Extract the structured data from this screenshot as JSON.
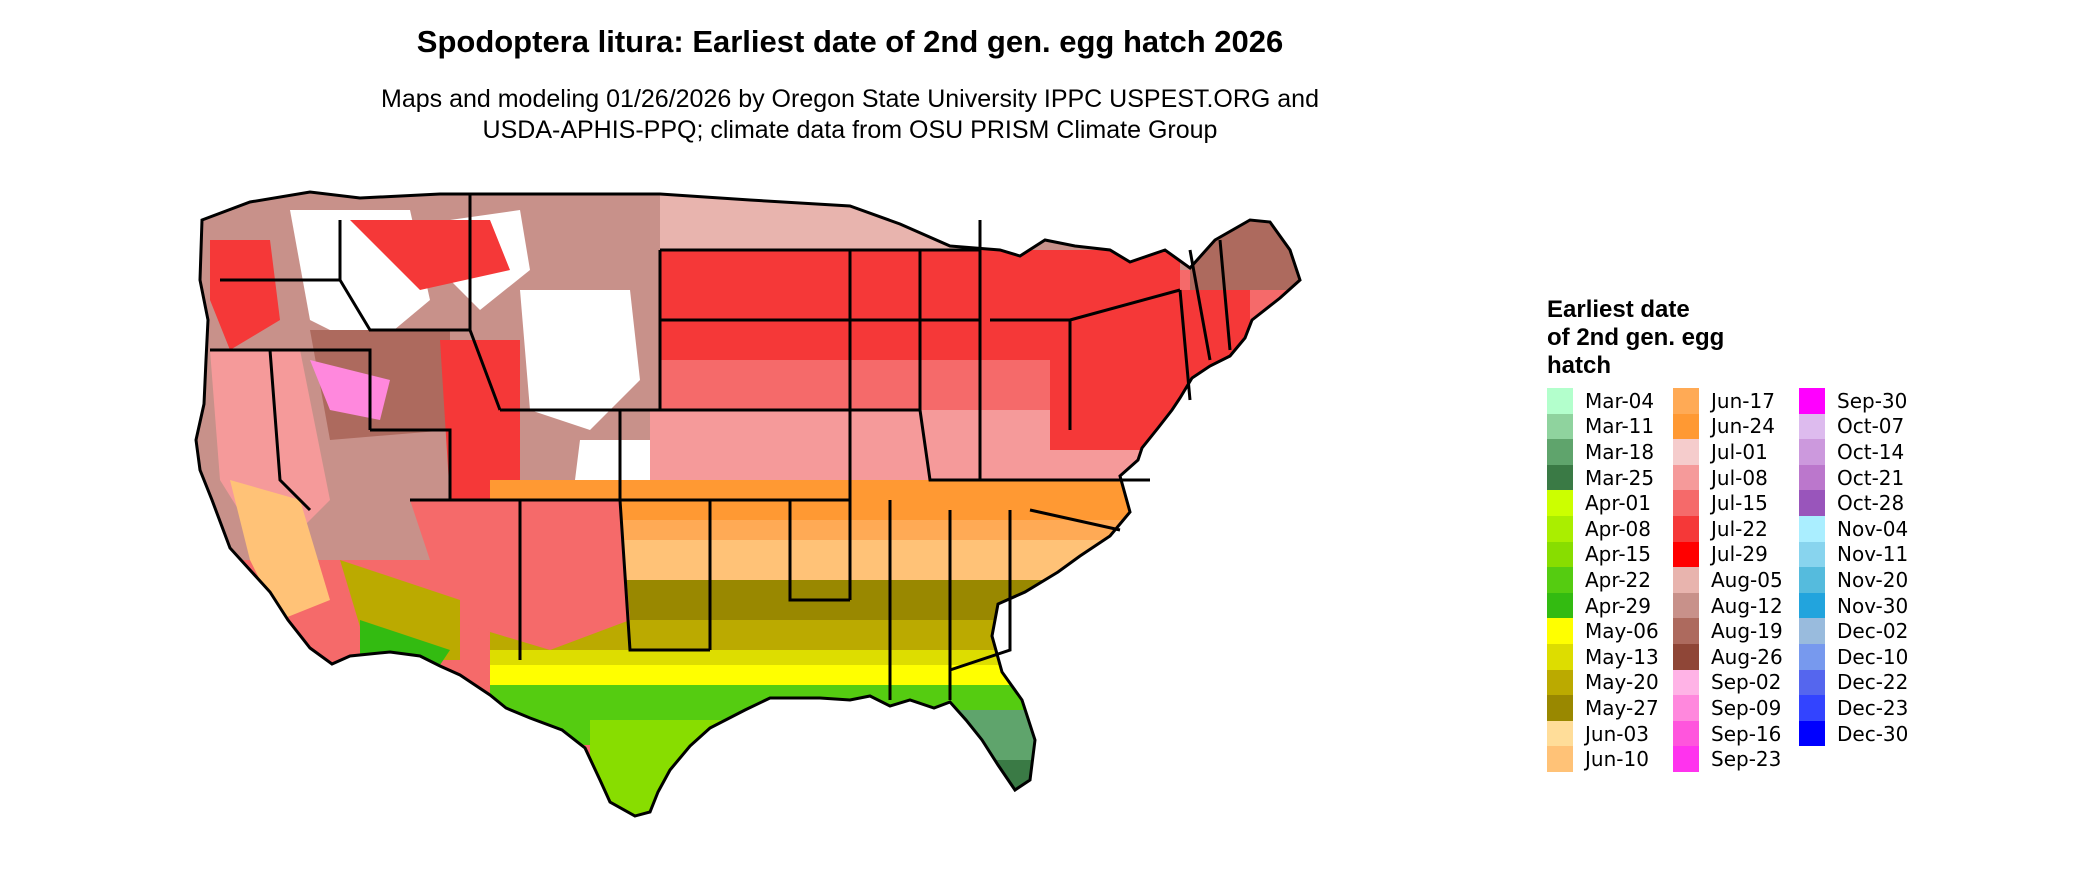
{
  "title": "Spodoptera litura: Earliest date of 2nd gen. egg hatch 2026",
  "subtitle_line1": "Maps and modeling 01/26/2026 by Oregon State University IPPC USPEST.ORG and",
  "subtitle_line2": "USDA-APHIS-PPQ; climate data from OSU PRISM Climate Group",
  "legend": {
    "title_line1": "Earliest date",
    "title_line2": "of 2nd gen. egg",
    "title_line3": "hatch",
    "columns": [
      [
        {
          "label": "Mar-04",
          "color": "#b3ffcc"
        },
        {
          "label": "Mar-11",
          "color": "#8fd39e"
        },
        {
          "label": "Mar-18",
          "color": "#5fa46c"
        },
        {
          "label": "Mar-25",
          "color": "#3a7a45"
        },
        {
          "label": "Apr-01",
          "color": "#ccff00"
        },
        {
          "label": "Apr-08",
          "color": "#aaee00"
        },
        {
          "label": "Apr-15",
          "color": "#88dd00"
        },
        {
          "label": "Apr-22",
          "color": "#55cc11"
        },
        {
          "label": "Apr-29",
          "color": "#33bb11"
        },
        {
          "label": "May-06",
          "color": "#ffff00"
        },
        {
          "label": "May-13",
          "color": "#dddd00"
        },
        {
          "label": "May-20",
          "color": "#bbaa00"
        },
        {
          "label": "May-27",
          "color": "#998800"
        },
        {
          "label": "Jun-03",
          "color": "#ffdd99"
        },
        {
          "label": "Jun-10",
          "color": "#ffc277"
        }
      ],
      [
        {
          "label": "Jun-17",
          "color": "#ffaa55"
        },
        {
          "label": "Jun-24",
          "color": "#ff9933"
        },
        {
          "label": "Jul-01",
          "color": "#f5cccc"
        },
        {
          "label": "Jul-08",
          "color": "#f59a9a"
        },
        {
          "label": "Jul-15",
          "color": "#f56a6a"
        },
        {
          "label": "Jul-22",
          "color": "#f53838"
        },
        {
          "label": "Jul-29",
          "color": "#ff0000"
        },
        {
          "label": "Aug-05",
          "color": "#e8b4ae"
        },
        {
          "label": "Aug-12",
          "color": "#c8918a"
        },
        {
          "label": "Aug-19",
          "color": "#ad6a5e"
        },
        {
          "label": "Aug-26",
          "color": "#8f4637"
        },
        {
          "label": "Sep-02",
          "color": "#ffb3e6"
        },
        {
          "label": "Sep-09",
          "color": "#ff88dd"
        },
        {
          "label": "Sep-16",
          "color": "#ff55dd"
        },
        {
          "label": "Sep-23",
          "color": "#ff33ee"
        }
      ],
      [
        {
          "label": "Sep-30",
          "color": "#ff00ff"
        },
        {
          "label": "Oct-07",
          "color": "#ddbbee"
        },
        {
          "label": "Oct-14",
          "color": "#cc99dd"
        },
        {
          "label": "Oct-21",
          "color": "#bb77cc"
        },
        {
          "label": "Oct-28",
          "color": "#9955bb"
        },
        {
          "label": "Nov-04",
          "color": "#aaeeff"
        },
        {
          "label": "Nov-11",
          "color": "#88d4ee"
        },
        {
          "label": "Nov-20",
          "color": "#55bbdd"
        },
        {
          "label": "Nov-30",
          "color": "#22a4dd"
        },
        {
          "label": "Dec-02",
          "color": "#99bbdd"
        },
        {
          "label": "Dec-10",
          "color": "#7799ee"
        },
        {
          "label": "Dec-22",
          "color": "#5566ee"
        },
        {
          "label": "Dec-23",
          "color": "#3344ff"
        },
        {
          "label": "Dec-30",
          "color": "#0000ff"
        }
      ]
    ]
  }
}
